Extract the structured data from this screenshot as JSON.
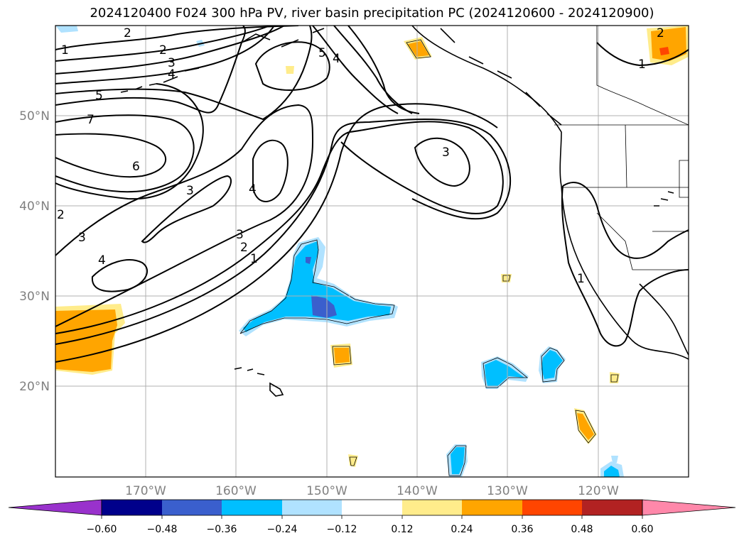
{
  "title": "2024120400 F024 300 hPa PV, river basin precipitation PC (2024120600 - 2024120900)",
  "map": {
    "lat_labels": [
      "50°N",
      "40°N",
      "30°N",
      "20°N"
    ],
    "lon_labels": [
      "170°W",
      "160°W",
      "150°W",
      "140°W",
      "130°W",
      "120°W"
    ],
    "grid": true,
    "contour_labels": [
      "2",
      "2",
      "3",
      "4",
      "5",
      "7",
      "6",
      "3",
      "2",
      "3",
      "4",
      "3",
      "2",
      "1",
      "4",
      "5",
      "4",
      "3",
      "2",
      "1",
      "1",
      "1"
    ]
  },
  "colorbar": {
    "labels": [
      "−0.60",
      "−0.48",
      "−0.36",
      "−0.24",
      "−0.12",
      "0.12",
      "0.24",
      "0.36",
      "0.48",
      "0.60"
    ],
    "colors": [
      "#9932cc",
      "#00008b",
      "#3a5fcd",
      "#00bfff",
      "#b0e2ff",
      "#ffffff",
      "#ffec8b",
      "#ffa500",
      "#ff4500",
      "#b22222",
      "#ff88aa"
    ]
  }
}
